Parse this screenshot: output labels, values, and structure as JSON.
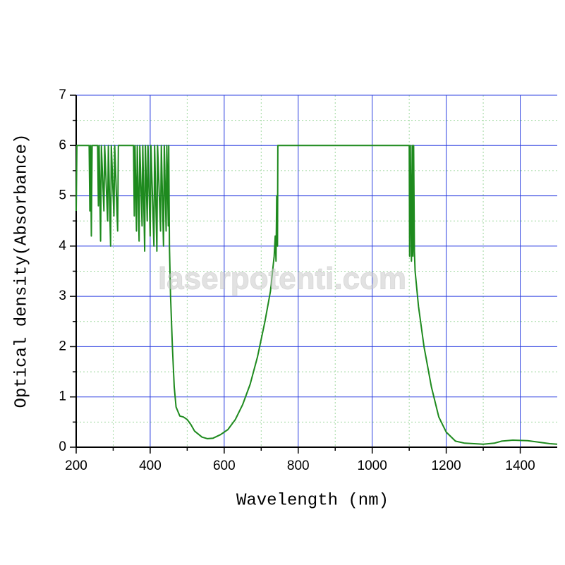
{
  "chart_data": {
    "type": "line",
    "xlabel": "Wavelength (nm)",
    "ylabel": "Optical density(Absorbance)",
    "watermark": "laserpotenti.com",
    "xlim": [
      200,
      1500
    ],
    "ylim": [
      0,
      7
    ],
    "xticks": [
      200,
      400,
      600,
      800,
      1000,
      1200,
      1400
    ],
    "yticks": [
      0,
      1,
      2,
      3,
      4,
      5,
      6,
      7
    ],
    "xminor": [
      300,
      500,
      700,
      900,
      1100,
      1300
    ],
    "yminor": [
      0.5,
      1.5,
      2.5,
      3.5,
      4.5,
      5.5,
      6.5
    ],
    "grid": true,
    "minor_grid": true,
    "color": "#1e8a1e",
    "x": [
      200,
      202,
      235,
      237,
      239,
      241,
      243,
      258,
      260,
      262,
      266,
      268,
      275,
      277,
      285,
      287,
      293,
      295,
      302,
      304,
      312,
      314,
      355,
      357,
      359,
      363,
      365,
      370,
      372,
      378,
      380,
      385,
      387,
      392,
      394,
      400,
      402,
      410,
      412,
      418,
      420,
      428,
      430,
      436,
      438,
      443,
      445,
      449,
      450,
      452,
      455,
      460,
      465,
      470,
      480,
      490,
      500,
      510,
      520,
      540,
      555,
      570,
      590,
      610,
      630,
      650,
      670,
      690,
      710,
      725,
      735,
      738,
      740,
      742,
      744,
      745,
      1100,
      1101,
      1103,
      1106,
      1108,
      1110,
      1112,
      1114,
      1116,
      1125,
      1140,
      1160,
      1180,
      1200,
      1225,
      1250,
      1300,
      1330,
      1350,
      1380,
      1420,
      1450,
      1480,
      1500
    ],
    "y": [
      4.7,
      6,
      6,
      4.7,
      6,
      4.2,
      6,
      6,
      4.8,
      6,
      4.1,
      6,
      4.7,
      6,
      4.5,
      6,
      4.0,
      6,
      4.6,
      6,
      4.3,
      6,
      6,
      4.6,
      6,
      4.3,
      6,
      4.1,
      6,
      4.4,
      6,
      3.9,
      6,
      4.5,
      6,
      4.2,
      6,
      4.0,
      6,
      3.9,
      6,
      4.3,
      6,
      4.0,
      6,
      4.3,
      6,
      4.4,
      6,
      4.0,
      3.0,
      2.0,
      1.2,
      0.8,
      0.62,
      0.6,
      0.55,
      0.45,
      0.32,
      0.2,
      0.17,
      0.18,
      0.25,
      0.35,
      0.55,
      0.85,
      1.25,
      1.8,
      2.5,
      3.1,
      3.8,
      4.2,
      3.7,
      5.0,
      4.0,
      6,
      6,
      3.8,
      6,
      3.7,
      6,
      3.8,
      6,
      3.9,
      3.5,
      2.8,
      2.0,
      1.2,
      0.6,
      0.3,
      0.12,
      0.08,
      0.06,
      0.08,
      0.12,
      0.14,
      0.13,
      0.1,
      0.07,
      0.06
    ]
  }
}
